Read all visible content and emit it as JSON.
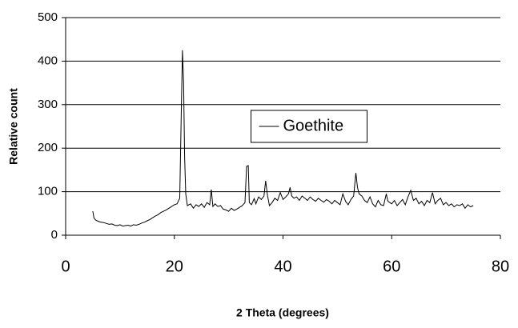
{
  "chart_data": {
    "type": "line",
    "xlabel": "2 Theta (degrees)",
    "ylabel": "Relative count",
    "x": [
      5,
      5.2,
      5.5,
      6,
      6.5,
      7,
      7.5,
      8,
      8.5,
      9,
      9.5,
      10,
      10.5,
      11,
      11.5,
      12,
      12.5,
      13,
      13.5,
      14,
      14.5,
      15,
      15.5,
      16,
      16.5,
      17,
      17.5,
      18,
      18.5,
      19,
      19.5,
      20,
      20.5,
      21,
      21.3,
      21.5,
      21.7,
      21.9,
      22.1,
      22.4,
      23,
      23.5,
      24,
      24.5,
      25,
      25.5,
      26,
      26.5,
      26.8,
      27.1,
      27.5,
      28,
      28.5,
      29,
      29.5,
      30,
      30.5,
      31,
      31.5,
      32,
      32.5,
      33,
      33.3,
      33.6,
      33.8,
      34.2,
      34.7,
      35,
      35.5,
      36,
      36.5,
      36.8,
      37.1,
      37.5,
      38,
      38.5,
      39,
      39.5,
      40,
      40.5,
      41,
      41.3,
      41.6,
      42,
      42.5,
      43,
      43.5,
      44,
      44.5,
      45,
      45.5,
      46,
      46.5,
      47,
      47.5,
      48,
      48.5,
      49,
      49.5,
      50,
      50.5,
      51,
      51.5,
      52,
      52.5,
      53,
      53.4,
      53.7,
      54,
      54.5,
      55,
      55.5,
      56,
      56.5,
      57,
      57.5,
      58,
      58.5,
      59,
      59.3,
      60,
      60.5,
      61,
      61.5,
      62,
      62.5,
      63,
      63.5,
      64,
      64.5,
      65,
      65.5,
      66,
      66.5,
      67,
      67.5,
      68,
      68.5,
      69,
      69.5,
      70,
      70.5,
      71,
      71.5,
      72,
      72.5,
      73,
      73.5,
      74,
      74.5,
      75
    ],
    "series": [
      {
        "name": "Goethite",
        "color": "#000000",
        "values": [
          55,
          40,
          35,
          32,
          30,
          29,
          27,
          25,
          26,
          23,
          22,
          24,
          21,
          22,
          23,
          21,
          24,
          23,
          25,
          28,
          30,
          33,
          36,
          40,
          44,
          47,
          52,
          55,
          58,
          62,
          66,
          70,
          72,
          85,
          300,
          425,
          350,
          180,
          95,
          68,
          72,
          62,
          70,
          66,
          72,
          64,
          75,
          70,
          105,
          66,
          72,
          66,
          68,
          60,
          58,
          55,
          62,
          57,
          60,
          64,
          68,
          75,
          158,
          160,
          75,
          70,
          84,
          72,
          88,
          82,
          90,
          125,
          95,
          68,
          75,
          85,
          80,
          98,
          82,
          88,
          95,
          110,
          90,
          85,
          88,
          80,
          90,
          85,
          80,
          88,
          82,
          78,
          85,
          80,
          76,
          82,
          78,
          72,
          80,
          75,
          70,
          95,
          78,
          70,
          82,
          90,
          143,
          110,
          95,
          90,
          80,
          75,
          88,
          72,
          65,
          80,
          70,
          68,
          95,
          78,
          72,
          80,
          68,
          75,
          82,
          70,
          88,
          103,
          80,
          85,
          72,
          78,
          68,
          80,
          75,
          98,
          72,
          80,
          85,
          70,
          75,
          68,
          72,
          65,
          70,
          68,
          72,
          62,
          70,
          65,
          68
        ]
      }
    ],
    "xlim": [
      0,
      80
    ],
    "xticks": [
      0,
      20,
      40,
      60,
      80
    ],
    "ylim": [
      0,
      500
    ],
    "yticks": [
      0,
      100,
      200,
      300,
      400,
      500
    ],
    "grid": true,
    "legend_position": "center"
  }
}
